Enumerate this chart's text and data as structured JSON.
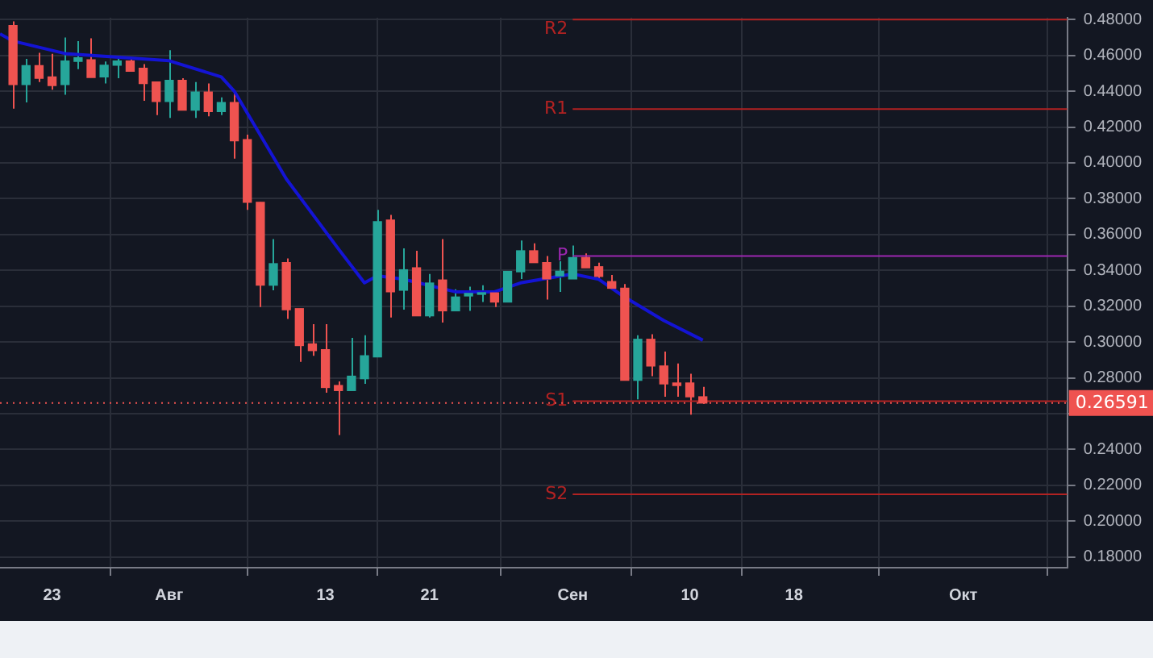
{
  "chart_data": {
    "type": "candlestick",
    "x": [
      "--07-20",
      "--07-21",
      "--07-22",
      "--07-23",
      "--07-24",
      "--07-25",
      "--07-26",
      "--07-27",
      "--07-28",
      "--07-29",
      "--07-30",
      "--07-31",
      "--08-01",
      "--08-02",
      "--08-03",
      "--08-04",
      "--08-05",
      "--08-06",
      "--08-07",
      "--08-08",
      "--08-09",
      "--08-10",
      "--08-11",
      "--08-12",
      "--08-13",
      "--08-14",
      "--08-15",
      "--08-16",
      "--08-17",
      "--08-18",
      "--08-19",
      "--08-20",
      "--08-21",
      "--08-22",
      "--08-23",
      "--08-24",
      "--08-25",
      "--08-26",
      "--08-27",
      "--08-28",
      "--08-29",
      "--08-30",
      "--08-31",
      "--09-01",
      "--09-02",
      "--09-03",
      "--09-04",
      "--09-05",
      "--09-06",
      "--09-07",
      "--09-08",
      "--09-09",
      "--09-10",
      "--09-11"
    ],
    "ohlc": [
      [
        0.4766,
        0.479,
        0.4303,
        0.4437
      ],
      [
        0.4437,
        0.458,
        0.4337,
        0.4543
      ],
      [
        0.4543,
        0.4614,
        0.4451,
        0.4472
      ],
      [
        0.448,
        0.4609,
        0.4408,
        0.4431
      ],
      [
        0.4437,
        0.47,
        0.438,
        0.4569
      ],
      [
        0.4566,
        0.468,
        0.4523,
        0.4586
      ],
      [
        0.4575,
        0.4695,
        0.4477,
        0.4477
      ],
      [
        0.448,
        0.4566,
        0.4443,
        0.4545
      ],
      [
        0.4545,
        0.458,
        0.4472,
        0.4569
      ],
      [
        0.4569,
        0.458,
        0.4511,
        0.4511
      ],
      [
        0.4528,
        0.4551,
        0.4346,
        0.4443
      ],
      [
        0.4451,
        0.4451,
        0.4266,
        0.4343
      ],
      [
        0.4343,
        0.4629,
        0.4251,
        0.446
      ],
      [
        0.446,
        0.4472,
        0.4294,
        0.4294
      ],
      [
        0.4294,
        0.4451,
        0.4251,
        0.4395
      ],
      [
        0.4395,
        0.4443,
        0.426,
        0.4286
      ],
      [
        0.4286,
        0.4366,
        0.4266,
        0.4337
      ],
      [
        0.4337,
        0.4395,
        0.4023,
        0.4123
      ],
      [
        0.4129,
        0.4157,
        0.3737,
        0.378
      ],
      [
        0.378,
        0.378,
        0.3195,
        0.3317
      ],
      [
        0.3317,
        0.3574,
        0.3289,
        0.3437
      ],
      [
        0.3443,
        0.3466,
        0.3129,
        0.318
      ],
      [
        0.3186,
        0.3186,
        0.2889,
        0.298
      ],
      [
        0.2989,
        0.31,
        0.2923,
        0.2952
      ],
      [
        0.2957,
        0.31,
        0.2717,
        0.2746
      ],
      [
        0.2757,
        0.278,
        0.248,
        0.2729
      ],
      [
        0.2729,
        0.3023,
        0.2729,
        0.2809
      ],
      [
        0.2795,
        0.3037,
        0.2766,
        0.2923
      ],
      [
        0.2917,
        0.3737,
        0.2917,
        0.3671
      ],
      [
        0.368,
        0.3709,
        0.3137,
        0.328
      ],
      [
        0.3289,
        0.3523,
        0.318,
        0.3403
      ],
      [
        0.3414,
        0.3509,
        0.3146,
        0.3146
      ],
      [
        0.3146,
        0.338,
        0.3137,
        0.3329
      ],
      [
        0.3346,
        0.3574,
        0.3109,
        0.3174
      ],
      [
        0.3174,
        0.3294,
        0.3174,
        0.3251
      ],
      [
        0.3257,
        0.3309,
        0.3174,
        0.3271
      ],
      [
        0.3266,
        0.3317,
        0.3223,
        0.3274
      ],
      [
        0.3274,
        0.3274,
        0.3195,
        0.3223
      ],
      [
        0.3223,
        0.3394,
        0.3223,
        0.3394
      ],
      [
        0.3392,
        0.3566,
        0.3352,
        0.3509
      ],
      [
        0.3509,
        0.3551,
        0.3443,
        0.3443
      ],
      [
        0.3443,
        0.348,
        0.3237,
        0.3352
      ],
      [
        0.3369,
        0.3451,
        0.328,
        0.3395
      ],
      [
        0.3352,
        0.3538,
        0.3352,
        0.3471
      ],
      [
        0.3471,
        0.3494,
        0.3414,
        0.3414
      ],
      [
        0.342,
        0.3443,
        0.3352,
        0.3366
      ],
      [
        0.3337,
        0.3374,
        0.33,
        0.33
      ],
      [
        0.33,
        0.3323,
        0.2786,
        0.2786
      ],
      [
        0.2786,
        0.3037,
        0.268,
        0.3015
      ],
      [
        0.3015,
        0.3043,
        0.2809,
        0.2866
      ],
      [
        0.2866,
        0.2946,
        0.2694,
        0.2766
      ],
      [
        0.2771,
        0.288,
        0.2694,
        0.2757
      ],
      [
        0.2771,
        0.2823,
        0.2594,
        0.2694
      ],
      [
        0.2694,
        0.2749,
        0.2655,
        0.26591
      ]
    ],
    "colors": [
      "#ef5350",
      "#26a69a",
      "#ef5350",
      "#ef5350",
      "#26a69a",
      "#26a69a",
      "#ef5350",
      "#26a69a",
      "#26a69a",
      "#ef5350",
      "#ef5350",
      "#ef5350",
      "#26a69a",
      "#ef5350",
      "#26a69a",
      "#ef5350",
      "#26a69a",
      "#ef5350",
      "#ef5350",
      "#ef5350",
      "#26a69a",
      "#ef5350",
      "#ef5350",
      "#ef5350",
      "#ef5350",
      "#ef5350",
      "#26a69a",
      "#26a69a",
      "#26a69a",
      "#ef5350",
      "#26a69a",
      "#ef5350",
      "#26a69a",
      "#ef5350",
      "#26a69a",
      "#26a69a",
      "#26a69a",
      "#ef5350",
      "#26a69a",
      "#26a69a",
      "#ef5350",
      "#ef5350",
      "#26a69a",
      "#26a69a",
      "#ef5350",
      "#ef5350",
      "#ef5350",
      "#ef5350",
      "#26a69a",
      "#ef5350",
      "#ef5350",
      "#ef5350",
      "#ef5350",
      "#ef5350"
    ],
    "series": [
      {
        "type": "line",
        "color": "#1414d4",
        "x": [
          "--07-19",
          "--07-20",
          "--07-24",
          "--08-01",
          "--08-05",
          "--08-06",
          "--08-10",
          "--08-14",
          "--08-16",
          "--08-17",
          "--08-19",
          "--08-23",
          "--08-26",
          "--08-28",
          "--09-01",
          "--09-03",
          "--09-05",
          "--09-08",
          "--09-11"
        ],
        "values": [
          0.472,
          0.468,
          0.461,
          0.457,
          0.448,
          0.44,
          0.391,
          0.352,
          0.333,
          0.337,
          0.335,
          0.328,
          0.328,
          0.333,
          0.338,
          0.335,
          0.325,
          0.312,
          0.301
        ]
      },
      {
        "type": "line",
        "name": "R2",
        "color": "#b22222",
        "x": [
          "--09-01",
          "--10-09"
        ],
        "values": [
          0.48,
          0.48
        ]
      },
      {
        "type": "line",
        "name": "R1",
        "color": "#b22222",
        "x": [
          "--09-01",
          "--10-09"
        ],
        "values": [
          0.43,
          0.43
        ]
      },
      {
        "type": "line",
        "name": "P",
        "color": "#9c27b0",
        "x": [
          "--09-01",
          "--10-09"
        ],
        "values": [
          0.348,
          0.348
        ]
      },
      {
        "type": "line",
        "name": "S1",
        "color": "#b22222",
        "x": [
          "--09-01",
          "--10-09"
        ],
        "values": [
          0.267,
          0.267
        ]
      },
      {
        "type": "line",
        "name": "S2",
        "color": "#b22222",
        "x": [
          "--09-01",
          "--10-09"
        ],
        "values": [
          0.215,
          0.215
        ]
      }
    ],
    "ref_lines": [
      {
        "axis": "y",
        "value": 0.26591,
        "label": "0.26591",
        "color": "#ef5350",
        "line_style": "dotted"
      }
    ],
    "xlim": [
      "--07-19",
      "--10-09"
    ],
    "xticks": [
      {
        "value": "--07-23",
        "label": "23"
      },
      {
        "value": "--08-01",
        "label": "Авг"
      },
      {
        "value": "--08-13",
        "label": "13"
      },
      {
        "value": "--08-21",
        "label": "21"
      },
      {
        "value": "--09-01",
        "label": "Сен"
      },
      {
        "value": "--09-10",
        "label": "10"
      },
      {
        "value": "--09-18",
        "label": "18"
      },
      {
        "value": "--10-01",
        "label": "Окт"
      }
    ],
    "ylim": [
      0.174,
      0.481
    ],
    "yticks": [
      {
        "value": 0.18,
        "label": "0.18000"
      },
      {
        "value": 0.2,
        "label": "0.20000"
      },
      {
        "value": 0.22,
        "label": "0.22000"
      },
      {
        "value": 0.24,
        "label": "0.24000"
      },
      {
        "value": 0.26,
        "label": null
      },
      {
        "value": 0.28,
        "label": "0.28000"
      },
      {
        "value": 0.3,
        "label": "0.30000"
      },
      {
        "value": 0.32,
        "label": "0.32000"
      },
      {
        "value": 0.34,
        "label": "0.34000"
      },
      {
        "value": 0.36,
        "label": "0.36000"
      },
      {
        "value": 0.38,
        "label": "0.38000"
      },
      {
        "value": 0.4,
        "label": "0.40000"
      },
      {
        "value": 0.42,
        "label": "0.42000"
      },
      {
        "value": 0.44,
        "label": "0.44000"
      },
      {
        "value": 0.46,
        "label": "0.46000"
      },
      {
        "value": 0.48,
        "label": "0.48000"
      }
    ],
    "grid": true,
    "marker": "none",
    "legend": false
  }
}
